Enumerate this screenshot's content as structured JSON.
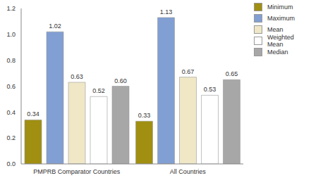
{
  "chart_data": {
    "type": "bar",
    "categories": [
      "PMPRB Comparator Countries",
      "All Countries"
    ],
    "series": [
      {
        "name": "Minimum",
        "color": "#a08f10",
        "values": [
          0.34,
          0.33
        ],
        "value_labels": [
          "0.34",
          "0.33"
        ]
      },
      {
        "name": "Maximum",
        "color": "#819fd2",
        "values": [
          1.02,
          1.13
        ],
        "value_labels": [
          "1.02",
          "1.13"
        ]
      },
      {
        "name": "Mean",
        "color": "#efe7c6",
        "values": [
          0.63,
          0.67
        ],
        "value_labels": [
          "0.63",
          "0.67"
        ]
      },
      {
        "name": "Weighted Mean",
        "color": "#ffffff",
        "values": [
          0.52,
          0.53
        ],
        "value_labels": [
          "0.52",
          "0.53"
        ]
      },
      {
        "name": "Median",
        "color": "#a7a7a7",
        "values": [
          0.6,
          0.65
        ],
        "value_labels": [
          "0.60",
          "0.65"
        ]
      }
    ],
    "ylim": [
      0,
      1.2
    ],
    "yticks": [
      {
        "value": 0,
        "label": "0.0"
      },
      0.2,
      0.4,
      0.6,
      0.8,
      {
        "value": 1,
        "label": "1.0"
      },
      1.2
    ],
    "grid": false,
    "legend": "top right",
    "data_labels": true
  }
}
